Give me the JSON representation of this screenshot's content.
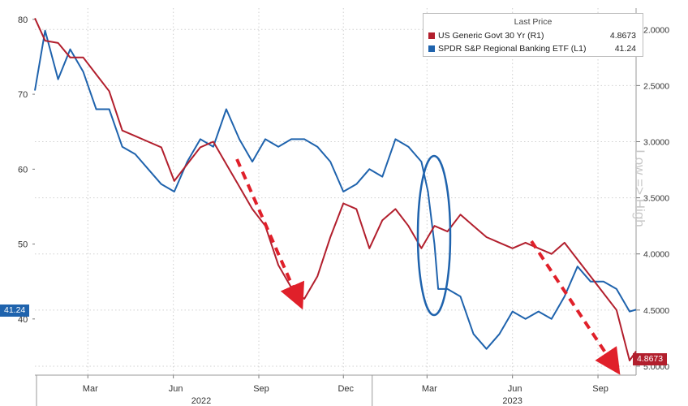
{
  "chart_data": {
    "type": "line",
    "legend": {
      "header": "Last Price",
      "placement": "top-right",
      "entries": [
        {
          "name": "US Generic Govt 30 Yr  (R1)",
          "value": "4.8673",
          "color": "#b21f2d"
        },
        {
          "name": "SPDR S&P Regional Banking ETF  (L1)",
          "value": "41.24",
          "color": "#1f63ad"
        }
      ]
    },
    "left_axis": {
      "ylim": [
        32.5,
        81.5
      ],
      "ticks": [
        40,
        50,
        60,
        70,
        80
      ]
    },
    "right_axis": {
      "ylim": [
        1.81,
        5.08
      ],
      "inverted": true,
      "ticks": [
        "2.0000",
        "2.5000",
        "3.0000",
        "3.5000",
        "4.0000",
        "4.5000",
        "5.0000"
      ]
    },
    "right_axis_label": "Low => High",
    "x_axis": {
      "months": [
        "Mar",
        "Jun",
        "Sep",
        "Dec",
        "Mar",
        "Jun",
        "Sep"
      ],
      "years": [
        "2022",
        "2023"
      ]
    },
    "grid": true,
    "last_value_badges": {
      "left": "41.24",
      "right": "4.8673"
    },
    "series": [
      {
        "name": "SPDR S&P Regional Banking ETF",
        "axis": "left",
        "color": "#1f63ad",
        "x": [
          "2022-01-03",
          "2022-01-14",
          "2022-01-28",
          "2022-02-10",
          "2022-02-24",
          "2022-03-10",
          "2022-03-24",
          "2022-04-07",
          "2022-04-21",
          "2022-05-05",
          "2022-05-19",
          "2022-06-02",
          "2022-06-16",
          "2022-06-30",
          "2022-07-14",
          "2022-07-28",
          "2022-08-11",
          "2022-08-25",
          "2022-09-08",
          "2022-09-22",
          "2022-10-06",
          "2022-10-20",
          "2022-11-03",
          "2022-11-17",
          "2022-12-01",
          "2022-12-15",
          "2022-12-29",
          "2023-01-12",
          "2023-01-26",
          "2023-02-09",
          "2023-02-23",
          "2023-03-02",
          "2023-03-09",
          "2023-03-13",
          "2023-03-23",
          "2023-04-06",
          "2023-04-20",
          "2023-05-04",
          "2023-05-18",
          "2023-06-01",
          "2023-06-15",
          "2023-06-29",
          "2023-07-13",
          "2023-07-27",
          "2023-08-10",
          "2023-08-24",
          "2023-09-07",
          "2023-09-21",
          "2023-10-05",
          "2023-10-12"
        ],
        "values": [
          70.5,
          78.5,
          72,
          76,
          73,
          68,
          68,
          63,
          62,
          60,
          58,
          57,
          61,
          64,
          63,
          68,
          64,
          61,
          64,
          63,
          64,
          64,
          63,
          61,
          57,
          58,
          60,
          59,
          64,
          63,
          61,
          57,
          50,
          44,
          44,
          43,
          38,
          36,
          38,
          41,
          40,
          41,
          40,
          43,
          47,
          45,
          45,
          44,
          41,
          41.24
        ]
      },
      {
        "name": "US Generic Govt 30 Yr",
        "axis": "right",
        "color": "#b21f2d",
        "x": [
          "2022-01-03",
          "2022-01-14",
          "2022-01-28",
          "2022-02-10",
          "2022-02-24",
          "2022-03-10",
          "2022-03-24",
          "2022-04-07",
          "2022-04-21",
          "2022-05-05",
          "2022-05-19",
          "2022-06-02",
          "2022-06-16",
          "2022-06-30",
          "2022-07-14",
          "2022-07-28",
          "2022-08-11",
          "2022-08-25",
          "2022-09-08",
          "2022-09-22",
          "2022-10-06",
          "2022-10-20",
          "2022-11-03",
          "2022-11-17",
          "2022-12-01",
          "2022-12-15",
          "2022-12-29",
          "2023-01-12",
          "2023-01-26",
          "2023-02-09",
          "2023-02-23",
          "2023-03-09",
          "2023-03-23",
          "2023-04-06",
          "2023-04-20",
          "2023-05-04",
          "2023-05-18",
          "2023-06-01",
          "2023-06-15",
          "2023-06-29",
          "2023-07-13",
          "2023-07-27",
          "2023-08-10",
          "2023-08-24",
          "2023-09-07",
          "2023-09-21",
          "2023-10-05",
          "2023-10-12"
        ],
        "values": [
          1.9,
          2.1,
          2.12,
          2.25,
          2.25,
          2.4,
          2.55,
          2.9,
          2.95,
          3.0,
          3.05,
          3.35,
          3.2,
          3.05,
          3.0,
          3.2,
          3.4,
          3.6,
          3.75,
          4.1,
          4.3,
          4.4,
          4.2,
          3.85,
          3.55,
          3.6,
          3.95,
          3.7,
          3.6,
          3.75,
          3.95,
          3.75,
          3.8,
          3.65,
          3.75,
          3.85,
          3.9,
          3.95,
          3.9,
          3.95,
          4.0,
          3.9,
          4.05,
          4.2,
          4.35,
          4.5,
          4.95,
          4.8673
        ]
      }
    ]
  }
}
